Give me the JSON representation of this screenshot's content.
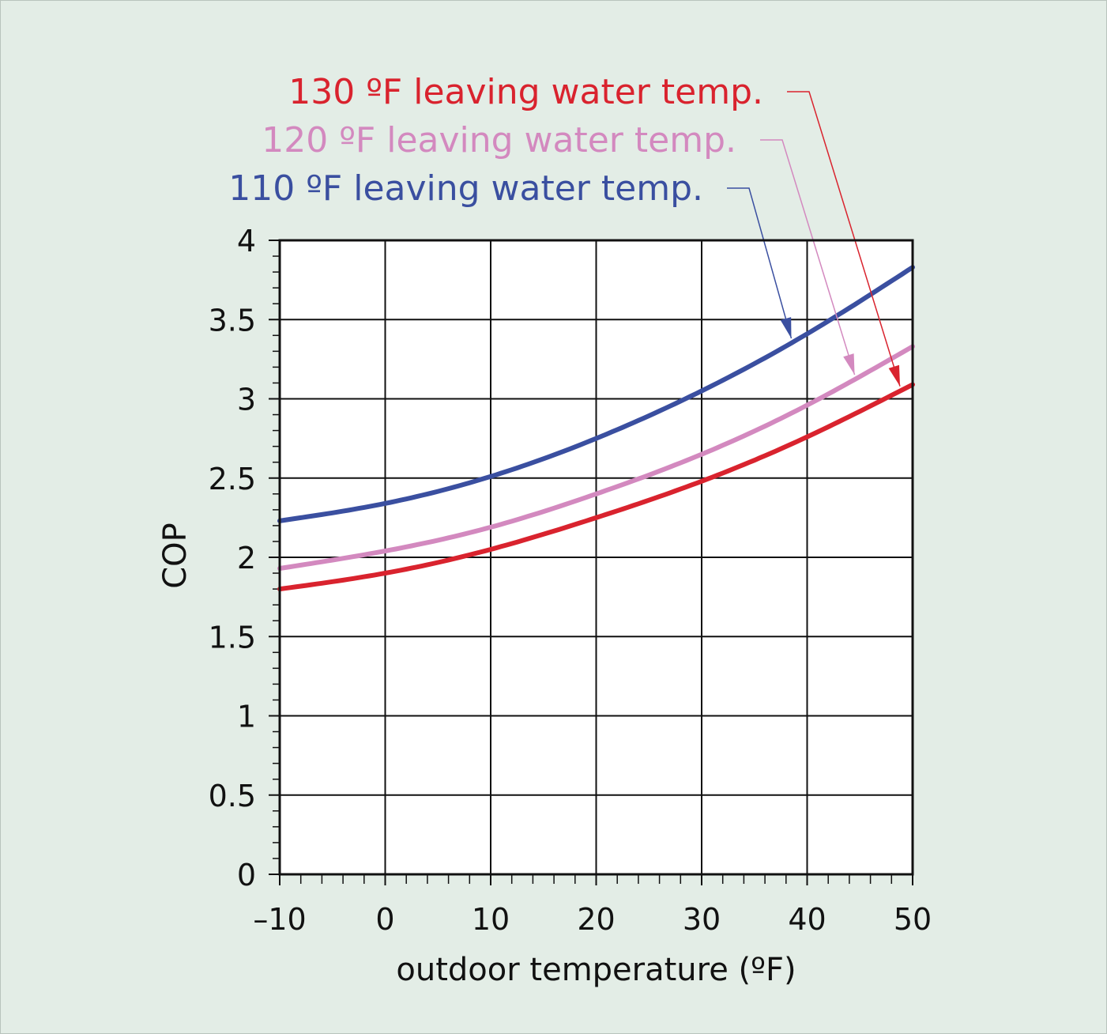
{
  "chart_data": {
    "type": "line",
    "xlabel": "outdoor temperature (ºF)",
    "ylabel": "COP",
    "xlim": [
      -10,
      50
    ],
    "ylim": [
      0,
      4
    ],
    "x_ticks": [
      -10,
      0,
      10,
      20,
      30,
      40,
      50
    ],
    "x_tick_labels": [
      "–10",
      "0",
      "10",
      "20",
      "30",
      "40",
      "50"
    ],
    "y_ticks": [
      0,
      0.5,
      1,
      1.5,
      2,
      2.5,
      3,
      3.5,
      4
    ],
    "y_tick_labels": [
      "0",
      "0.5",
      "1",
      "1.5",
      "2",
      "2.5",
      "3",
      "3.5",
      "4"
    ],
    "grid": true,
    "x": [
      -10,
      0,
      10,
      20,
      30,
      40,
      50
    ],
    "series": [
      {
        "name": "110 ºF leaving water temp.",
        "color": "#3a4fa0",
        "values": [
          2.23,
          2.34,
          2.51,
          2.75,
          3.05,
          3.41,
          3.83
        ],
        "label_pointer_x": 38.5
      },
      {
        "name": "120 ºF leaving water temp.",
        "color": "#d389bf",
        "values": [
          1.93,
          2.04,
          2.19,
          2.4,
          2.65,
          2.96,
          3.33
        ],
        "label_pointer_x": 44.5
      },
      {
        "name": "130 ºF leaving water temp.",
        "color": "#d9232e",
        "values": [
          1.8,
          1.9,
          2.05,
          2.25,
          2.48,
          2.76,
          3.09
        ],
        "label_pointer_x": 48.8
      }
    ]
  }
}
